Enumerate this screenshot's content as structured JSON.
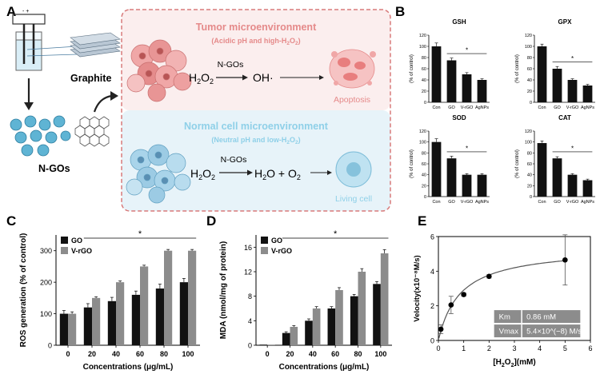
{
  "panel_letters": {
    "a": "A",
    "b": "B",
    "c": "C",
    "d": "D",
    "e": "E"
  },
  "panel_a": {
    "graphite_label": "Graphite",
    "ngos_label": "N-GOs",
    "electrode_signs": "- +",
    "tumor": {
      "title": "Tumor microenvironment",
      "subtitle_pre": "(Acidic pH and high-H",
      "subtitle_sub": "2",
      "subtitle_mid": "O",
      "subtitle_sub2": "2",
      "subtitle_post": ")",
      "reactant": "H",
      "reactant_sub": "2",
      "reactant_mid": "O",
      "reactant_sub2": "2",
      "catalyst": "N-GOs",
      "product": "OH·",
      "outcome": "Apoptosis"
    },
    "normal": {
      "title": "Normal cell microenvironment",
      "subtitle_pre": "(Neutral pH and low-H",
      "subtitle_sub": "2",
      "subtitle_mid": "O",
      "subtitle_sub2": "2",
      "subtitle_post": ")",
      "reactant": "H",
      "reactant_sub": "2",
      "reactant_mid": "O",
      "reactant_sub2": "2",
      "catalyst": "N-GOs",
      "product_a": "H",
      "product_a_sub": "2",
      "product_b": "O + O",
      "product_b_sub": "2",
      "outcome": "Living cell"
    }
  },
  "colors": {
    "black_bar": "#111111",
    "gray_bar": "#8c8c8c",
    "tumor_box": "#fbeeee",
    "normal_box": "#e7f3f9",
    "box_border": "#d87a7a",
    "tumor_title": "#e58a8a",
    "normal_title": "#8fd0e8",
    "fit_line": "#555555",
    "table_bg": "#8c8c8c"
  },
  "chart_data": [
    {
      "id": "gsh",
      "type": "bar",
      "title": "GSH",
      "ylabel": "(% of control)",
      "categories": [
        "Con",
        "GO",
        "V-rGO",
        "AgNPs"
      ],
      "values": [
        100,
        75,
        50,
        40
      ],
      "errors": [
        6,
        4,
        3,
        2
      ],
      "ylim": [
        0,
        120
      ],
      "yticks": [
        0,
        20,
        40,
        60,
        80,
        100,
        120
      ],
      "significance": "*",
      "sig_span": [
        1,
        3
      ]
    },
    {
      "id": "gpx",
      "type": "bar",
      "title": "GPX",
      "ylabel": "(% of control)",
      "categories": [
        "Con",
        "GO",
        "V-rGO",
        "AgNPs"
      ],
      "values": [
        100,
        60,
        40,
        30
      ],
      "errors": [
        4,
        4,
        2,
        2
      ],
      "ylim": [
        0,
        120
      ],
      "yticks": [
        0,
        20,
        40,
        60,
        80,
        100,
        120
      ],
      "significance": "*",
      "sig_span": [
        1,
        3
      ]
    },
    {
      "id": "sod",
      "type": "bar",
      "title": "SOD",
      "ylabel": "(% of control)",
      "categories": [
        "Con",
        "GO",
        "V-rGO",
        "AgNPs"
      ],
      "values": [
        100,
        70,
        40,
        40
      ],
      "errors": [
        6,
        4,
        2,
        2
      ],
      "ylim": [
        0,
        120
      ],
      "yticks": [
        0,
        20,
        40,
        60,
        80,
        100,
        120
      ],
      "significance": "*",
      "sig_span": [
        1,
        3
      ]
    },
    {
      "id": "cat",
      "type": "bar",
      "title": "CAT",
      "ylabel": "(% of control)",
      "categories": [
        "Con",
        "GO",
        "V-rGO",
        "AgNPs"
      ],
      "values": [
        98,
        70,
        40,
        30
      ],
      "errors": [
        4,
        3,
        2,
        2
      ],
      "ylim": [
        0,
        120
      ],
      "yticks": [
        0,
        20,
        40,
        60,
        80,
        100,
        120
      ],
      "significance": "*",
      "sig_span": [
        1,
        3
      ]
    },
    {
      "id": "ros",
      "type": "bar",
      "ylabel": "ROS generation (% of control)",
      "xlabel": "Concentrations (μg/mL)",
      "categories": [
        "0",
        "20",
        "40",
        "60",
        "80",
        "100"
      ],
      "series": [
        {
          "name": "GO",
          "values": [
            100,
            120,
            140,
            160,
            180,
            200
          ],
          "errors": [
            10,
            12,
            12,
            12,
            14,
            12
          ]
        },
        {
          "name": "V-rGO",
          "values": [
            100,
            150,
            200,
            250,
            300,
            300
          ],
          "errors": [
            6,
            4,
            4,
            4,
            4,
            4
          ]
        }
      ],
      "ylim": [
        0,
        350
      ],
      "yticks": [
        0,
        100,
        200,
        300
      ],
      "significance": "*",
      "sig_span": [
        1,
        5
      ],
      "legend": "top-left"
    },
    {
      "id": "mda",
      "type": "bar",
      "ylabel": "MDA (nmol/mg of protein)",
      "xlabel": "Concentrations (μg/mL)",
      "categories": [
        "0",
        "20",
        "40",
        "60",
        "80",
        "100"
      ],
      "series": [
        {
          "name": "GO",
          "values": [
            0.1,
            2,
            4,
            6,
            8,
            10
          ],
          "errors": [
            0,
            0.2,
            0.3,
            0.3,
            0.3,
            0.4
          ]
        },
        {
          "name": "V-rGO",
          "values": [
            0.1,
            3,
            6,
            9,
            12,
            15
          ],
          "errors": [
            0,
            0.2,
            0.3,
            0.4,
            0.5,
            0.6
          ]
        }
      ],
      "ylim": [
        0,
        18
      ],
      "yticks": [
        0,
        4,
        8,
        12,
        16
      ],
      "significance": "*",
      "sig_span": [
        1,
        5
      ],
      "legend": "top-left"
    },
    {
      "id": "kinetics",
      "type": "scatter",
      "xlabel_pre": "[H",
      "xlabel_sub": "2",
      "xlabel_mid": "O",
      "xlabel_sub2": "2",
      "xlabel_post": "](mM)",
      "ylabel": "Velocity(x10⁻⁸M/s)",
      "x": [
        0.1,
        0.5,
        1,
        2,
        5
      ],
      "y": [
        0.65,
        2.05,
        2.65,
        3.7,
        4.65
      ],
      "yerr": [
        0.25,
        0.5,
        0.1,
        0.1,
        1.45
      ],
      "fit": "michaelis-menten",
      "km": 0.86,
      "vmax": 5.4,
      "xlim": [
        0,
        6
      ],
      "ylim": [
        0,
        6
      ],
      "xticks": [
        0,
        1,
        2,
        3,
        4,
        5,
        6
      ],
      "yticks": [
        0,
        2,
        4,
        6
      ],
      "table": [
        {
          "label": "Km",
          "value": "0.86 mM"
        },
        {
          "label": "Vmax",
          "value": "5.4×10^(−8) M/s"
        }
      ]
    }
  ]
}
